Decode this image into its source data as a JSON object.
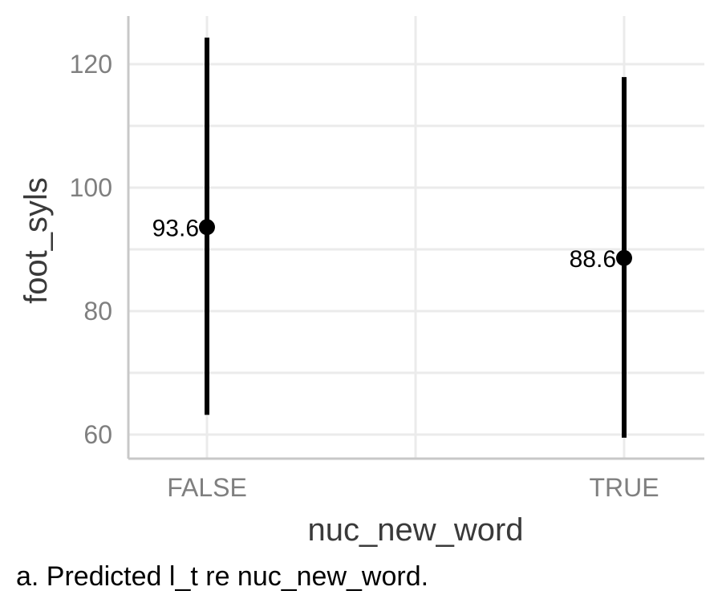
{
  "chart_data": {
    "type": "scatter",
    "subtype": "point-range",
    "title": "",
    "xlabel": "nuc_new_word",
    "ylabel": "foot_syls",
    "categories": [
      "FALSE",
      "TRUE"
    ],
    "points": [
      {
        "category": "FALSE",
        "estimate": 93.6,
        "lower": 63.2,
        "upper": 124.3,
        "label": "93.6"
      },
      {
        "category": "TRUE",
        "estimate": 88.6,
        "lower": 59.5,
        "upper": 117.9,
        "label": "88.6"
      }
    ],
    "ylim": [
      56,
      126
    ],
    "yticks": [
      60,
      80,
      100,
      120
    ],
    "ytick_labels": [
      "60",
      "80",
      "100",
      "120"
    ],
    "grid": true,
    "colors": {
      "points": "#000000",
      "grid": "#ebebeb",
      "axis": "#c8c8c8",
      "tick_text": "#7f7f7f",
      "title_text": "#3a3a3a"
    }
  },
  "caption": "a. Predicted l_t re nuc_new_word."
}
